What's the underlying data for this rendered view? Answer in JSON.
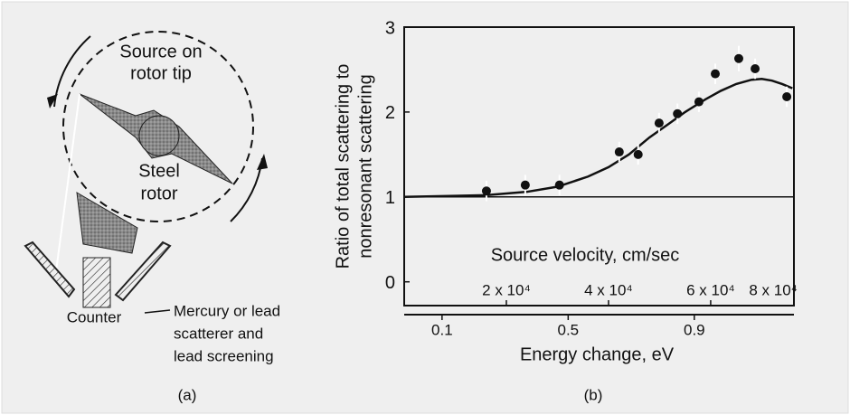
{
  "diagram": {
    "source_label": [
      "Source on",
      "rotor tip"
    ],
    "rotor_label": [
      "Steel",
      "rotor"
    ],
    "counter_label": "Counter",
    "scatterer_label": [
      "Mercury or lead",
      "scatterer and",
      "lead screening"
    ],
    "caption": "(a)"
  },
  "chart_data": {
    "type": "scatter",
    "y_label": [
      "Ratio of total scattering to",
      "nonresonant scattering"
    ],
    "x_label": "Source velocity,  cm/sec",
    "x2_label": "Energy change, eV",
    "caption": "(b)",
    "xlim": [
      0,
      76300
    ],
    "xticks": [
      {
        "value": 20000,
        "label": "2 x 10⁴"
      },
      {
        "value": 40000,
        "label": "4 x 10⁴"
      },
      {
        "value": 60000,
        "label": "6 x 10⁴"
      },
      {
        "value": 80000,
        "label": "8 x 10⁴"
      }
    ],
    "ylim": [
      -0.28,
      3
    ],
    "yticks": [
      0,
      1,
      2,
      3
    ],
    "x2lim": [
      -0.02,
      1.216
    ],
    "x2ticks": [
      0.1,
      0.5,
      0.9
    ],
    "reference_line": 1,
    "series": [
      {
        "type": "scatter",
        "color": "#111111",
        "x": [
          16100,
          23700,
          30400,
          42100,
          45800,
          49900,
          53500,
          57700,
          60900,
          65500,
          68700,
          74900
        ],
        "values": [
          1.07,
          1.14,
          1.14,
          1.53,
          1.5,
          1.87,
          1.98,
          2.12,
          2.45,
          2.63,
          2.51,
          2.18
        ],
        "errors": [
          0.12,
          0.12,
          0.12,
          0.12,
          0.12,
          0.12,
          0.12,
          0.12,
          0.12,
          0.15,
          0.12,
          0.12
        ]
      },
      {
        "type": "line",
        "color": "#111111",
        "x": [
          0,
          16000,
          24000,
          30000,
          36000,
          40000,
          44000,
          48000,
          52000,
          55000,
          59000,
          62000,
          65000,
          68000,
          70000,
          72000,
          74000,
          76000
        ],
        "values": [
          1.0,
          1.02,
          1.06,
          1.12,
          1.24,
          1.35,
          1.5,
          1.7,
          1.87,
          2.0,
          2.15,
          2.25,
          2.33,
          2.38,
          2.39,
          2.37,
          2.33,
          2.28
        ]
      }
    ]
  }
}
